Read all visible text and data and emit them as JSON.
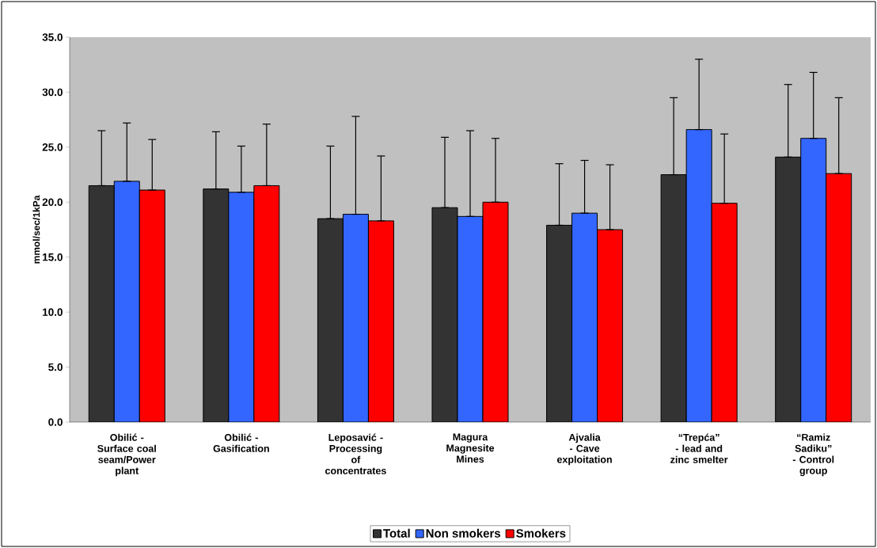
{
  "chart_data": {
    "type": "bar",
    "ylabel": "mmol/sec/1kPa",
    "categories": [
      "Obilić - Surface coal seam/Power plant",
      "Obilić - Gasification",
      "Leposavić - Processing of concentrates",
      "Magura Magnesite Mines",
      "Ajvalia - Cave exploitation",
      "“Trepća” - lead and zinc smelter",
      "“Ramiz Sadiku” - Control group"
    ],
    "series": [
      {
        "name": "Total",
        "color": "#333333",
        "values": [
          21.5,
          21.2,
          18.5,
          19.5,
          17.9,
          22.5,
          24.1
        ],
        "errors": [
          [
            21.5,
            26.5
          ],
          [
            21.2,
            26.4
          ],
          [
            18.5,
            25.1
          ],
          [
            19.5,
            25.9
          ],
          [
            17.9,
            23.5
          ],
          [
            22.5,
            29.5
          ],
          [
            24.1,
            30.7
          ]
        ]
      },
      {
        "name": "Non smokers",
        "color": "#3366ff",
        "values": [
          21.9,
          20.9,
          18.9,
          18.7,
          19.0,
          26.6,
          25.8
        ],
        "errors": [
          [
            21.9,
            27.2
          ],
          [
            20.9,
            25.1
          ],
          [
            18.9,
            27.8
          ],
          [
            18.7,
            26.5
          ],
          [
            19.0,
            23.8
          ],
          [
            26.6,
            33.0
          ],
          [
            25.8,
            31.8
          ]
        ]
      },
      {
        "name": "Smokers",
        "color": "#ff0000",
        "values": [
          21.1,
          21.5,
          18.3,
          20.0,
          17.5,
          19.9,
          22.6
        ],
        "errors": [
          [
            21.1,
            25.7
          ],
          [
            21.5,
            27.1
          ],
          [
            18.3,
            24.2
          ],
          [
            20.0,
            25.8
          ],
          [
            17.5,
            23.4
          ],
          [
            19.9,
            26.2
          ],
          [
            22.6,
            29.5
          ]
        ]
      }
    ],
    "ylim": [
      0,
      35
    ],
    "yticks": [
      {
        "value": 0,
        "label": "0.0"
      },
      {
        "value": 5,
        "label": "5.0"
      },
      {
        "value": 10,
        "label": "10.0"
      },
      {
        "value": 15,
        "label": "15.0"
      },
      {
        "value": 20,
        "label": "20.0"
      },
      {
        "value": 25,
        "label": "25.0"
      },
      {
        "value": 30,
        "label": "30.0"
      },
      {
        "value": 35,
        "label": "35.0"
      }
    ],
    "grid": false,
    "legend": "bottom"
  }
}
